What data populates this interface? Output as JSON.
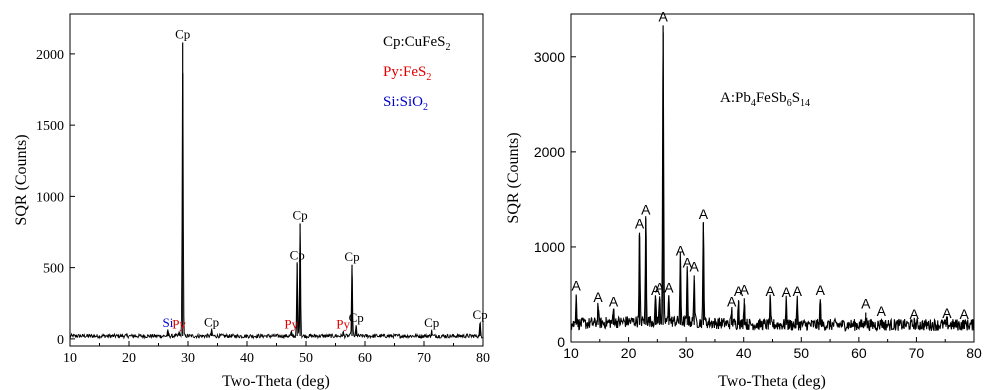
{
  "colors": {
    "cp": "#000000",
    "py": "#e00000",
    "si": "#0000cc",
    "axis": "#000000",
    "trace": "#000000"
  },
  "chart_data": [
    {
      "type": "line",
      "xlabel": "Two-Theta (deg)",
      "ylabel": "SQR (Counts)",
      "xlim": [
        10,
        80
      ],
      "ylim": [
        -50,
        2280
      ],
      "xticks": [
        10,
        20,
        30,
        40,
        50,
        60,
        70,
        80
      ],
      "yticks": [
        0,
        500,
        1000,
        1500,
        2000
      ],
      "legend": [
        {
          "prefix": "Cp:CuFeS",
          "sub": "2",
          "color_key": "cp"
        },
        {
          "prefix": "Py:FeS",
          "sub": "2",
          "color_key": "py"
        },
        {
          "prefix": "Si:SiO",
          "sub": "2",
          "color_key": "si"
        }
      ],
      "baseline": 20,
      "peaks": [
        {
          "x": 29.1,
          "y": 2080,
          "label": "Cp",
          "color_key": "cp"
        },
        {
          "x": 48.5,
          "y": 530,
          "label": "Cp",
          "color_key": "cp"
        },
        {
          "x": 49.0,
          "y": 810,
          "label": "Cp",
          "color_key": "cp"
        },
        {
          "x": 57.8,
          "y": 520,
          "label": "Cp",
          "color_key": "cp"
        },
        {
          "x": 58.5,
          "y": 90,
          "label": "Cp",
          "color_key": "cp"
        },
        {
          "x": 34.0,
          "y": 60,
          "label": "Cp",
          "color_key": "cp"
        },
        {
          "x": 71.3,
          "y": 55,
          "label": "Cp",
          "color_key": "cp"
        },
        {
          "x": 79.5,
          "y": 110,
          "label": "Cp",
          "color_key": "cp"
        },
        {
          "x": 28.5,
          "y": 45,
          "label": "Py",
          "color_key": "py"
        },
        {
          "x": 47.5,
          "y": 45,
          "label": "Py",
          "color_key": "py"
        },
        {
          "x": 56.3,
          "y": 45,
          "label": "Py",
          "color_key": "py"
        },
        {
          "x": 26.6,
          "y": 55,
          "label": "Si",
          "color_key": "si"
        }
      ]
    },
    {
      "type": "line",
      "xlabel": "Two-Theta (deg)",
      "ylabel": "SQR (Counts)",
      "xlim": [
        10,
        80
      ],
      "ylim": [
        0,
        3450
      ],
      "xticks": [
        10,
        20,
        30,
        40,
        50,
        60,
        70,
        80
      ],
      "yticks": [
        0,
        1000,
        2000,
        3000
      ],
      "legend": [
        {
          "prefix": "A:Pb",
          "parts": [
            {
              "t": "A:Pb"
            },
            {
              "s": "4"
            },
            {
              "t": "FeSb"
            },
            {
              "s": "6"
            },
            {
              "t": "S"
            },
            {
              "s": "14"
            }
          ]
        }
      ],
      "baseline": 180,
      "peaks": [
        {
          "x": 10.9,
          "y": 500,
          "label": "A"
        },
        {
          "x": 14.7,
          "y": 380,
          "label": "A"
        },
        {
          "x": 17.4,
          "y": 330,
          "label": "A"
        },
        {
          "x": 21.9,
          "y": 1150,
          "label": "A"
        },
        {
          "x": 23.0,
          "y": 1300,
          "label": "A"
        },
        {
          "x": 24.7,
          "y": 450,
          "label": "A"
        },
        {
          "x": 25.4,
          "y": 480,
          "label": "A"
        },
        {
          "x": 26.0,
          "y": 3330,
          "label": "A"
        },
        {
          "x": 27.0,
          "y": 480,
          "label": "A"
        },
        {
          "x": 29.0,
          "y": 870,
          "label": "A"
        },
        {
          "x": 30.2,
          "y": 740,
          "label": "A"
        },
        {
          "x": 31.4,
          "y": 700,
          "label": "A"
        },
        {
          "x": 33.0,
          "y": 1250,
          "label": "A"
        },
        {
          "x": 37.9,
          "y": 330,
          "label": "A"
        },
        {
          "x": 39.1,
          "y": 440,
          "label": "A"
        },
        {
          "x": 40.1,
          "y": 460,
          "label": "A"
        },
        {
          "x": 44.6,
          "y": 440,
          "label": "A"
        },
        {
          "x": 47.4,
          "y": 430,
          "label": "A"
        },
        {
          "x": 49.3,
          "y": 440,
          "label": "A"
        },
        {
          "x": 53.3,
          "y": 450,
          "label": "A"
        },
        {
          "x": 61.2,
          "y": 310,
          "label": "A"
        },
        {
          "x": 63.9,
          "y": 230,
          "label": "A"
        },
        {
          "x": 69.6,
          "y": 200,
          "label": "A"
        },
        {
          "x": 75.3,
          "y": 210,
          "label": "A"
        },
        {
          "x": 78.3,
          "y": 200,
          "label": "A"
        }
      ]
    }
  ]
}
